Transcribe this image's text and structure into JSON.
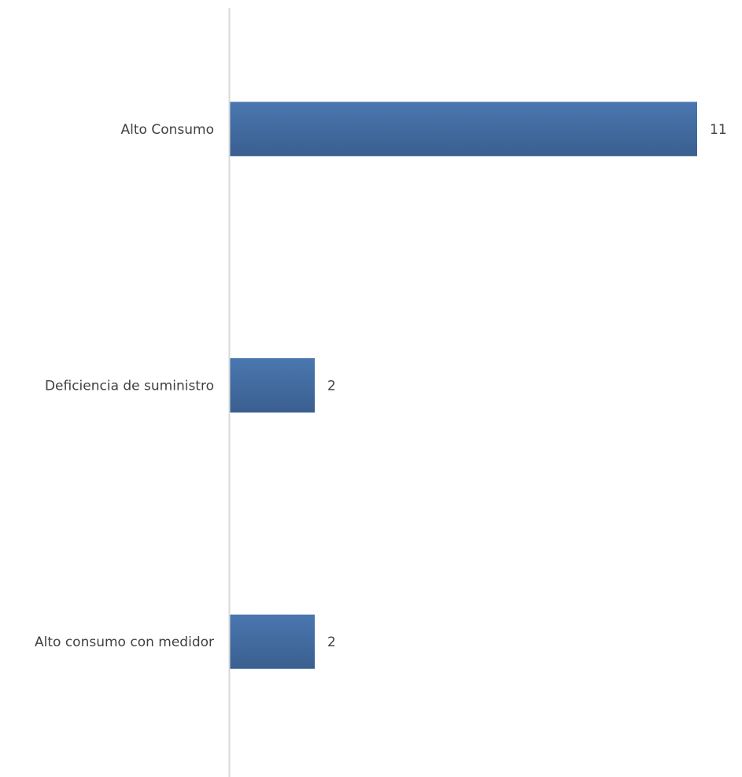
{
  "chart_data": {
    "type": "bar",
    "orientation": "horizontal",
    "categories": [
      "Alto Consumo",
      "Deficiencia de suministro",
      "Alto consumo con medidor"
    ],
    "values": [
      11,
      2,
      2
    ],
    "title": "",
    "xlabel": "",
    "ylabel": "",
    "xlim": [
      0,
      11
    ],
    "grid": false,
    "data_labels": true,
    "bar_color": "#4a77b0",
    "bar_color_dark": "#3a5f8f",
    "axis_color": "#d9d9d9"
  }
}
